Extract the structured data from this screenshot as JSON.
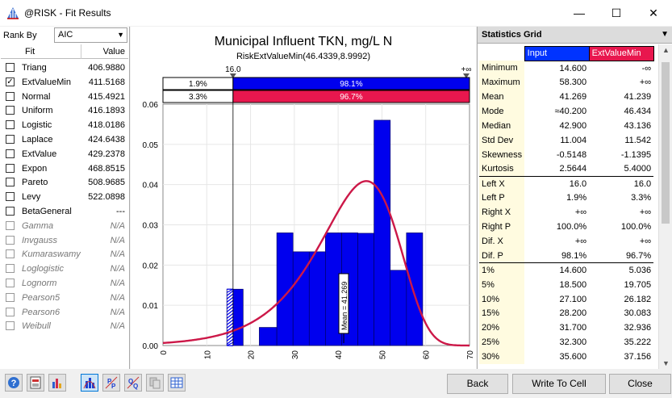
{
  "window": {
    "title": "@RISK - Fit Results",
    "minimize_glyph": "—",
    "maximize_glyph": "☐",
    "close_glyph": "✕"
  },
  "rank_by": {
    "label": "Rank By",
    "value": "AIC"
  },
  "fit_table": {
    "headers": [
      "Fit",
      "Value"
    ],
    "rows": [
      {
        "name": "Triang",
        "value": "406.9880",
        "checked": false,
        "enabled": true
      },
      {
        "name": "ExtValueMin",
        "value": "411.5168",
        "checked": true,
        "enabled": true
      },
      {
        "name": "Normal",
        "value": "415.4921",
        "checked": false,
        "enabled": true
      },
      {
        "name": "Uniform",
        "value": "416.1893",
        "checked": false,
        "enabled": true
      },
      {
        "name": "Logistic",
        "value": "418.0186",
        "checked": false,
        "enabled": true
      },
      {
        "name": "Laplace",
        "value": "424.6438",
        "checked": false,
        "enabled": true
      },
      {
        "name": "ExtValue",
        "value": "429.2378",
        "checked": false,
        "enabled": true
      },
      {
        "name": "Expon",
        "value": "468.8515",
        "checked": false,
        "enabled": true
      },
      {
        "name": "Pareto",
        "value": "508.9685",
        "checked": false,
        "enabled": true
      },
      {
        "name": "Levy",
        "value": "522.0898",
        "checked": false,
        "enabled": true
      },
      {
        "name": "BetaGeneral",
        "value": "---",
        "checked": false,
        "enabled": true
      },
      {
        "name": "Gamma",
        "value": "N/A",
        "checked": false,
        "enabled": false
      },
      {
        "name": "Invgauss",
        "value": "N/A",
        "checked": false,
        "enabled": false
      },
      {
        "name": "Kumaraswamy",
        "value": "N/A",
        "checked": false,
        "enabled": false
      },
      {
        "name": "Loglogistic",
        "value": "N/A",
        "checked": false,
        "enabled": false
      },
      {
        "name": "Lognorm",
        "value": "N/A",
        "checked": false,
        "enabled": false
      },
      {
        "name": "Pearson5",
        "value": "N/A",
        "checked": false,
        "enabled": false
      },
      {
        "name": "Pearson6",
        "value": "N/A",
        "checked": false,
        "enabled": false
      },
      {
        "name": "Weibull",
        "value": "N/A",
        "checked": false,
        "enabled": false
      }
    ]
  },
  "chart_data": {
    "type": "bar",
    "title": "Municipal Influent TKN, mg/L N",
    "subtitle": "RiskExtValueMin(46.4339,8.9992)",
    "xlim": [
      0,
      70
    ],
    "ylim": [
      0,
      0.06
    ],
    "x_ticks": [
      "0",
      "10",
      "20",
      "30",
      "40",
      "50",
      "60",
      "70"
    ],
    "y_ticks": [
      "0.00",
      "0.01",
      "0.02",
      "0.03",
      "0.04",
      "0.05",
      "0.06"
    ],
    "histogram": [
      {
        "x0": 14.6,
        "x1": 18.3,
        "density": 0.014
      },
      {
        "x0": 18.3,
        "x1": 22.0,
        "density": 0.0
      },
      {
        "x0": 22.0,
        "x1": 26.0,
        "density": 0.0045
      },
      {
        "x0": 26.0,
        "x1": 29.7,
        "density": 0.028
      },
      {
        "x0": 29.7,
        "x1": 33.4,
        "density": 0.0233
      },
      {
        "x0": 33.4,
        "x1": 37.1,
        "density": 0.0233
      },
      {
        "x0": 37.1,
        "x1": 40.8,
        "density": 0.028
      },
      {
        "x0": 40.8,
        "x1": 44.5,
        "density": 0.028
      },
      {
        "x0": 44.5,
        "x1": 48.2,
        "density": 0.0279
      },
      {
        "x0": 48.2,
        "x1": 51.9,
        "density": 0.056
      },
      {
        "x0": 51.9,
        "x1": 55.6,
        "density": 0.0187
      },
      {
        "x0": 55.6,
        "x1": 59.3,
        "density": 0.028
      }
    ],
    "curve": {
      "name": "ExtValueMin",
      "a": 46.4339,
      "b": 8.9992
    },
    "mean_marker": {
      "x": 41.269,
      "label": "Mean = 41.269"
    },
    "left_marker": {
      "x": 16.0,
      "label": "16.0"
    },
    "right_marker": {
      "label": "+∞"
    },
    "prob_bars": [
      {
        "series": "Input",
        "left": "1.9%",
        "right": "98.1%"
      },
      {
        "series": "ExtValueMin",
        "left": "3.3%",
        "right": "96.7%"
      }
    ],
    "colors": {
      "input": "#0000ee",
      "fit": "#e8174e",
      "curve": "#cc1848"
    },
    "grid": true,
    "legend": "none"
  },
  "stats": {
    "header": "Statistics Grid",
    "columns": [
      "Input",
      "ExtValueMin"
    ],
    "rows": [
      {
        "label": "Minimum",
        "input": "14.600",
        "fit": "-∞",
        "sep": false
      },
      {
        "label": "Maximum",
        "input": "58.300",
        "fit": "+∞",
        "sep": false
      },
      {
        "label": "Mean",
        "input": "41.269",
        "fit": "41.239",
        "sep": false
      },
      {
        "label": "Mode",
        "input": "≈40.200",
        "fit": "46.434",
        "sep": false
      },
      {
        "label": "Median",
        "input": "42.900",
        "fit": "43.136",
        "sep": false
      },
      {
        "label": "Std Dev",
        "input": "11.004",
        "fit": "11.542",
        "sep": false
      },
      {
        "label": "Skewness",
        "input": "-0.5148",
        "fit": "-1.1395",
        "sep": false
      },
      {
        "label": "Kurtosis",
        "input": "2.5644",
        "fit": "5.4000",
        "sep": false
      },
      {
        "label": "Left X",
        "input": "16.0",
        "fit": "16.0",
        "sep": true
      },
      {
        "label": "Left P",
        "input": "1.9%",
        "fit": "3.3%",
        "sep": false
      },
      {
        "label": "Right X",
        "input": "+∞",
        "fit": "+∞",
        "sep": false
      },
      {
        "label": "Right P",
        "input": "100.0%",
        "fit": "100.0%",
        "sep": false
      },
      {
        "label": "Dif. X",
        "input": "+∞",
        "fit": "+∞",
        "sep": false
      },
      {
        "label": "Dif. P",
        "input": "98.1%",
        "fit": "96.7%",
        "sep": false
      },
      {
        "label": "1%",
        "input": "14.600",
        "fit": "5.036",
        "sep": true
      },
      {
        "label": "5%",
        "input": "18.500",
        "fit": "19.705",
        "sep": false
      },
      {
        "label": "10%",
        "input": "27.100",
        "fit": "26.182",
        "sep": false
      },
      {
        "label": "15%",
        "input": "28.200",
        "fit": "30.083",
        "sep": false
      },
      {
        "label": "20%",
        "input": "31.700",
        "fit": "32.936",
        "sep": false
      },
      {
        "label": "25%",
        "input": "32.300",
        "fit": "35.222",
        "sep": false
      },
      {
        "label": "30%",
        "input": "35.600",
        "fit": "37.156",
        "sep": false
      }
    ]
  },
  "buttons": {
    "back": "Back",
    "write": "Write To Cell",
    "close": "Close"
  },
  "toolbar": [
    "help-icon",
    "summary-icon",
    "chart-type-icon",
    "density-icon",
    "pp-plot-icon",
    "qq-plot-icon",
    "copy-icon",
    "table-icon"
  ]
}
